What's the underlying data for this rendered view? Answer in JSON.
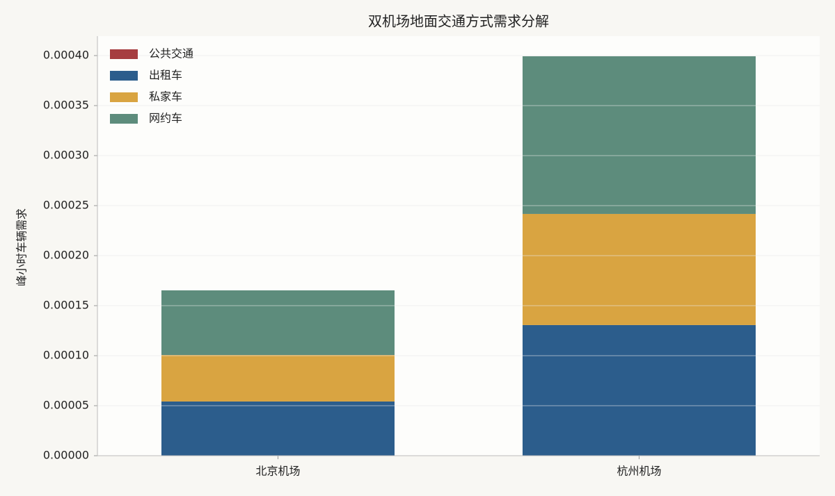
{
  "chart_data": {
    "type": "stacked_bar",
    "title": "双机场地面交通方式需求分解",
    "y_label": "峰小时车辆需求",
    "categories": [
      "北京机场",
      "杭州机场"
    ],
    "series": [
      {
        "name": "公共交通",
        "color": "#a63d40",
        "values": [
          0,
          0
        ]
      },
      {
        "name": "出租车",
        "color": "#2c5d8c",
        "values": [
          5.42e-05,
          0.0001306
        ]
      },
      {
        "name": "私家车",
        "color": "#d9a441",
        "values": [
          4.65e-05,
          0.0001111
        ]
      },
      {
        "name": "网约车",
        "color": "#5d8c7c",
        "values": [
          6.46e-05,
          0.0001576
        ]
      }
    ],
    "ylim": [
      0,
      0.0004
    ],
    "yticks": [
      {
        "value": 0,
        "label": "0.00000"
      },
      {
        "value": 5e-05,
        "label": "0.00005"
      },
      {
        "value": 0.0001,
        "label": "0.00010"
      },
      {
        "value": 0.00015,
        "label": "0.00015"
      },
      {
        "value": 0.0002,
        "label": "0.00020"
      },
      {
        "value": 0.00025,
        "label": "0.00025"
      },
      {
        "value": 0.0003,
        "label": "0.00030"
      },
      {
        "value": 0.00035,
        "label": "0.00035"
      },
      {
        "value": 0.0004,
        "label": "0.00040"
      }
    ],
    "grid": true,
    "legend": "upper-left"
  }
}
